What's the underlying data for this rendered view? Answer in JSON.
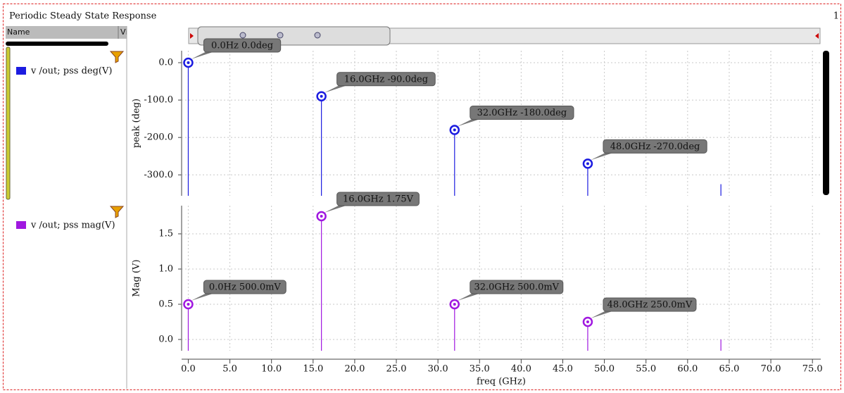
{
  "window": {
    "title": "Periodic Steady State Response",
    "page": "1",
    "name_header": "Name",
    "value_header": "Vi"
  },
  "chart_data": [
    {
      "type": "stem",
      "ylabel": "peak (deg)",
      "series": [
        {
          "name": "v /out; pss deg(V)",
          "color": "#1c1ce0",
          "x": [
            0,
            16,
            32,
            48,
            64
          ],
          "values": [
            0,
            -90,
            -180,
            -270,
            -325
          ],
          "value_labels": [
            "0.0Hz 0.0deg",
            "16.0GHz -90.0deg",
            "32.0GHz -180.0deg",
            "48.0GHz -270.0deg",
            null
          ]
        }
      ],
      "ylim": [
        -356,
        32
      ],
      "yticks": [
        {
          "value": 0,
          "label": "0.0"
        },
        {
          "value": -100,
          "label": "-100.0"
        },
        {
          "value": -200,
          "label": "-200.0"
        },
        {
          "value": -300,
          "label": "-300.0"
        }
      ],
      "grid": true
    },
    {
      "type": "stem",
      "ylabel": "Mag (V)",
      "xlabel": "freq (GHz)",
      "series": [
        {
          "name": "v /out; pss mag(V)",
          "color": "#a018e0",
          "x": [
            0,
            16,
            32,
            48,
            64
          ],
          "values": [
            0.5,
            1.75,
            0.5,
            0.25,
            0
          ],
          "value_labels": [
            "0.0Hz 500.0mV",
            "16.0GHz 1.75V",
            "32.0GHz 500.0mV",
            "48.0GHz 250.0mV",
            null
          ]
        }
      ],
      "ylim": [
        -0.16,
        1.9
      ],
      "yticks": [
        {
          "value": 0,
          "label": "0.0"
        },
        {
          "value": 0.5,
          "label": "0.5"
        },
        {
          "value": 1,
          "label": "1.0"
        },
        {
          "value": 1.5,
          "label": "1.5"
        }
      ],
      "xlim": [
        -0.8,
        76
      ],
      "xticks": [
        {
          "value": 0,
          "label": "0.0"
        },
        {
          "value": 5,
          "label": "5.0"
        },
        {
          "value": 10,
          "label": "10.0"
        },
        {
          "value": 15,
          "label": "15.0"
        },
        {
          "value": 20,
          "label": "20.0"
        },
        {
          "value": 25,
          "label": "25.0"
        },
        {
          "value": 30,
          "label": "30.0"
        },
        {
          "value": 35,
          "label": "35.0"
        },
        {
          "value": 40,
          "label": "40.0"
        },
        {
          "value": 45,
          "label": "45.0"
        },
        {
          "value": 50,
          "label": "50.0"
        },
        {
          "value": 55,
          "label": "55.0"
        },
        {
          "value": 60,
          "label": "60.0"
        },
        {
          "value": 65,
          "label": "65.0"
        },
        {
          "value": 70,
          "label": "70.0"
        },
        {
          "value": 75,
          "label": "75.0"
        }
      ],
      "grid": true
    }
  ]
}
